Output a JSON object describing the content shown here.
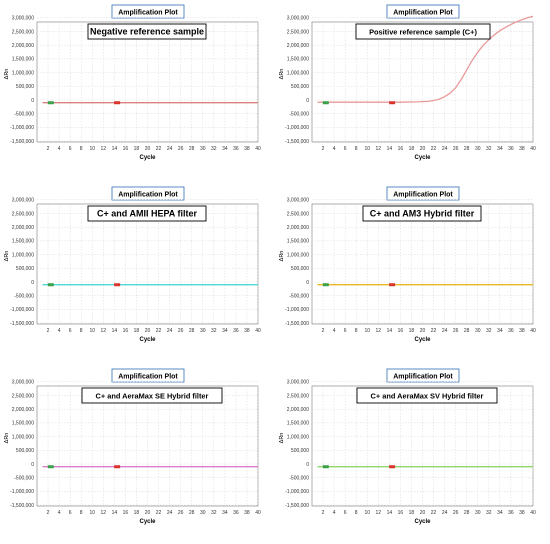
{
  "chart_data": [
    {
      "type": "line",
      "title": "Amplification Plot",
      "annotation": "Negative reference sample",
      "xlabel": "Cycle",
      "ylabel": "ΔRn",
      "xlim": [
        0,
        40
      ],
      "ylim": [
        -1600000,
        3200000
      ],
      "xticks": [
        2,
        4,
        6,
        8,
        10,
        12,
        14,
        16,
        18,
        20,
        22,
        24,
        26,
        28,
        30,
        32,
        34,
        36,
        38,
        40
      ],
      "yticks": [
        "3,000,000",
        "2,500,000",
        "2,000,000",
        "1,500,000",
        "1,000,000",
        "500,000",
        "0",
        "-500,000",
        "-1,000,000",
        "-1,500,000"
      ],
      "grid": true,
      "series": [
        {
          "color": "#d98080",
          "x": [
            1,
            40
          ],
          "y": [
            -100000,
            -100000
          ]
        }
      ],
      "threshold_markers": [
        {
          "x": 2.5,
          "color": "#3aa04a"
        },
        {
          "x": 14.5,
          "color": "#d9342b"
        }
      ]
    },
    {
      "type": "line",
      "title": "Amplification Plot",
      "annotation": "Positive reference sample (C+)",
      "xlabel": "Cycle",
      "ylabel": "ΔRn",
      "xlim": [
        0,
        40
      ],
      "ylim": [
        -1600000,
        3200000
      ],
      "xticks": [
        2,
        4,
        6,
        8,
        10,
        12,
        14,
        16,
        18,
        20,
        22,
        24,
        26,
        28,
        30,
        32,
        34,
        36,
        38,
        40
      ],
      "yticks": [
        "3,000,000",
        "2,500,000",
        "2,000,000",
        "1,500,000",
        "1,000,000",
        "500,000",
        "0",
        "-500,000",
        "-1,000,000",
        "-1,500,000"
      ],
      "grid": true,
      "series": [
        {
          "color": "#e89a9a",
          "x": [
            1,
            4,
            8,
            12,
            16,
            19,
            21,
            22,
            23,
            24,
            25,
            26,
            27,
            28,
            29,
            30,
            31,
            32,
            33,
            34,
            35,
            36,
            37,
            38,
            39,
            40
          ],
          "y": [
            -80000,
            -80000,
            -80000,
            -80000,
            -80000,
            -70000,
            -50000,
            -20000,
            30000,
            120000,
            250000,
            450000,
            750000,
            1100000,
            1450000,
            1750000,
            2000000,
            2200000,
            2380000,
            2530000,
            2650000,
            2760000,
            2850000,
            2930000,
            3000000,
            3060000
          ]
        }
      ],
      "threshold_markers": [
        {
          "x": 2.5,
          "color": "#3aa04a"
        },
        {
          "x": 14.5,
          "color": "#d9342b"
        }
      ]
    },
    {
      "type": "line",
      "title": "Amplification Plot",
      "annotation": "C+ and AMII HEPA filter",
      "xlabel": "Cycle",
      "ylabel": "ΔRn",
      "xlim": [
        0,
        40
      ],
      "ylim": [
        -1600000,
        3200000
      ],
      "xticks": [
        2,
        4,
        6,
        8,
        10,
        12,
        14,
        16,
        18,
        20,
        22,
        24,
        26,
        28,
        30,
        32,
        34,
        36,
        38,
        40
      ],
      "yticks": [
        "3,000,000",
        "2,500,000",
        "2,000,000",
        "1,500,000",
        "1,000,000",
        "500,000",
        "0",
        "-500,000",
        "-1,000,000",
        "-1,500,000"
      ],
      "grid": true,
      "series": [
        {
          "color": "#4fd6d6",
          "x": [
            1,
            40
          ],
          "y": [
            -100000,
            -100000
          ]
        }
      ],
      "threshold_markers": [
        {
          "x": 2.5,
          "color": "#3aa04a"
        },
        {
          "x": 14.5,
          "color": "#d9342b"
        }
      ]
    },
    {
      "type": "line",
      "title": "Amplification Plot",
      "annotation": "C+ and AM3 Hybrid filter",
      "xlabel": "Cycle",
      "ylabel": "ΔRn",
      "xlim": [
        0,
        40
      ],
      "ylim": [
        -1600000,
        3200000
      ],
      "xticks": [
        2,
        4,
        6,
        8,
        10,
        12,
        14,
        16,
        18,
        20,
        22,
        24,
        26,
        28,
        30,
        32,
        34,
        36,
        38,
        40
      ],
      "yticks": [
        "3,000,000",
        "2,500,000",
        "2,000,000",
        "1,500,000",
        "1,000,000",
        "500,000",
        "0",
        "-500,000",
        "-1,000,000",
        "-1,500,000"
      ],
      "grid": true,
      "series": [
        {
          "color": "#e8b923",
          "x": [
            1,
            40
          ],
          "y": [
            -100000,
            -100000
          ]
        }
      ],
      "threshold_markers": [
        {
          "x": 2.5,
          "color": "#3aa04a"
        },
        {
          "x": 14.5,
          "color": "#d9342b"
        }
      ]
    },
    {
      "type": "line",
      "title": "Amplification Plot",
      "annotation": "C+ and AeraMax SE Hybrid filter",
      "xlabel": "Cycle",
      "ylabel": "ΔRn",
      "xlim": [
        0,
        40
      ],
      "ylim": [
        -1600000,
        3200000
      ],
      "xticks": [
        2,
        4,
        6,
        8,
        10,
        12,
        14,
        16,
        18,
        20,
        22,
        24,
        26,
        28,
        30,
        32,
        34,
        36,
        38,
        40
      ],
      "yticks": [
        "3,000,000",
        "2,500,000",
        "2,000,000",
        "1,500,000",
        "1,000,000",
        "500,000",
        "0",
        "-500,000",
        "-1,000,000",
        "-1,500,000"
      ],
      "grid": true,
      "series": [
        {
          "color": "#d97fc9",
          "x": [
            1,
            40
          ],
          "y": [
            -100000,
            -100000
          ]
        }
      ],
      "threshold_markers": [
        {
          "x": 2.5,
          "color": "#3aa04a"
        },
        {
          "x": 14.5,
          "color": "#d9342b"
        }
      ]
    },
    {
      "type": "line",
      "title": "Amplification Plot",
      "annotation": "C+ and AeraMax SV Hybrid filter",
      "xlabel": "Cycle",
      "ylabel": "ΔRn",
      "xlim": [
        0,
        40
      ],
      "ylim": [
        -1600000,
        3200000
      ],
      "xticks": [
        2,
        4,
        6,
        8,
        10,
        12,
        14,
        16,
        18,
        20,
        22,
        24,
        26,
        28,
        30,
        32,
        34,
        36,
        38,
        40
      ],
      "yticks": [
        "3,000,000",
        "2,500,000",
        "2,000,000",
        "1,500,000",
        "1,000,000",
        "500,000",
        "0",
        "-500,000",
        "-1,000,000",
        "-1,500,000"
      ],
      "grid": true,
      "series": [
        {
          "color": "#8fd66a",
          "x": [
            1,
            40
          ],
          "y": [
            -100000,
            -100000
          ]
        }
      ],
      "threshold_markers": [
        {
          "x": 2.5,
          "color": "#3aa04a"
        },
        {
          "x": 14.5,
          "color": "#d9342b"
        }
      ]
    }
  ]
}
